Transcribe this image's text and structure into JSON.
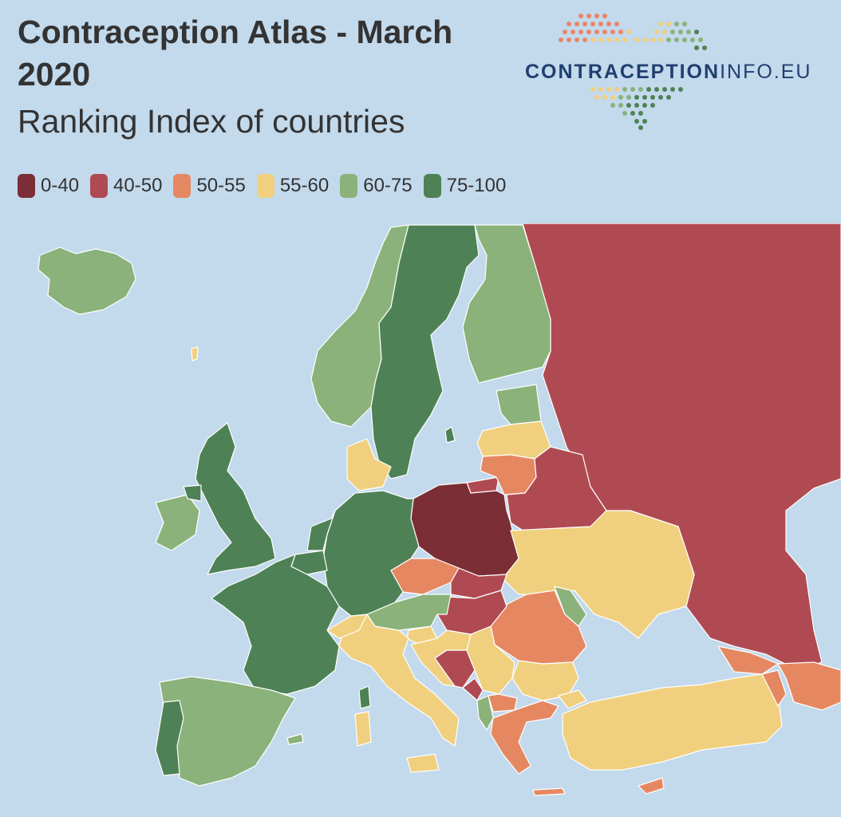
{
  "header": {
    "title": "Contraception Atlas - March 2020",
    "subtitle": "Ranking Index of countries"
  },
  "logo": {
    "text_main": "CONTRACEPTION",
    "text_rest": "INFO.EU",
    "dot_colors": [
      "#e8866a",
      "#f0cf7e",
      "#8ab27a",
      "#4e8256"
    ]
  },
  "legend": [
    {
      "label": "0-40",
      "color": "#7b2e35"
    },
    {
      "label": "40-50",
      "color": "#b04a52"
    },
    {
      "label": "50-55",
      "color": "#e58862"
    },
    {
      "label": "55-60",
      "color": "#f0d07e"
    },
    {
      "label": "60-75",
      "color": "#8ab27a"
    },
    {
      "label": "75-100",
      "color": "#4e8256"
    }
  ],
  "colors": {
    "sea": "#c3d9ec",
    "border": "#ffffff"
  }
}
